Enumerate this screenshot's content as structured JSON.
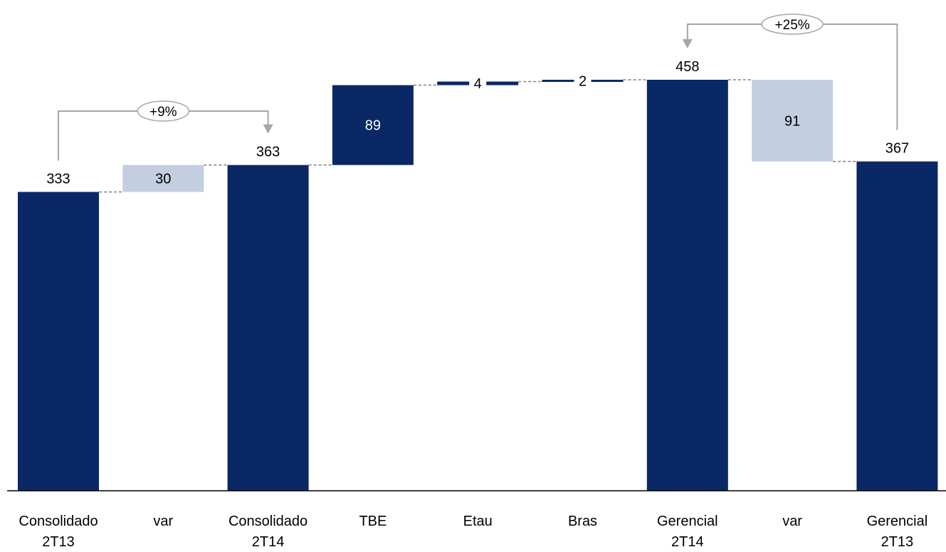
{
  "colors": {
    "total_bar": "#0A2865",
    "variation_bar": "#C3CEE0",
    "connector": "#808080",
    "bracket": "#A6A6A6",
    "axis": "#000000"
  },
  "chart_data": {
    "type": "bar",
    "subtype": "waterfall",
    "title": "",
    "xlabel": "",
    "ylabel": "",
    "ylim": [
      0,
      458
    ],
    "categories": [
      [
        "Consolidado",
        "2T13"
      ],
      [
        "var"
      ],
      [
        "Consolidado",
        "2T14"
      ],
      [
        "TBE"
      ],
      [
        "Etau"
      ],
      [
        "Bras"
      ],
      [
        "Gerencial",
        "2T14"
      ],
      [
        "var"
      ],
      [
        "Gerencial",
        "2T13"
      ]
    ],
    "bars": [
      {
        "kind": "total",
        "value": 333,
        "label": "333"
      },
      {
        "kind": "variation",
        "value": 30,
        "base": 333,
        "label": "30"
      },
      {
        "kind": "total",
        "value": 363,
        "label": "363"
      },
      {
        "kind": "step",
        "value": 89,
        "base": 363,
        "label": "89"
      },
      {
        "kind": "step",
        "value": 4,
        "base": 452,
        "label": "4"
      },
      {
        "kind": "step",
        "value": 2,
        "base": 456,
        "label": "2"
      },
      {
        "kind": "total",
        "value": 458,
        "label": "458"
      },
      {
        "kind": "variation",
        "value": 91,
        "base": 367,
        "label": "91"
      },
      {
        "kind": "total",
        "value": 367,
        "label": "367"
      }
    ],
    "annotations": [
      {
        "text": "+9%",
        "from": 0,
        "to": 2
      },
      {
        "text": "+25%",
        "from": 8,
        "to": 6
      }
    ],
    "grid": false,
    "legend": "none"
  }
}
